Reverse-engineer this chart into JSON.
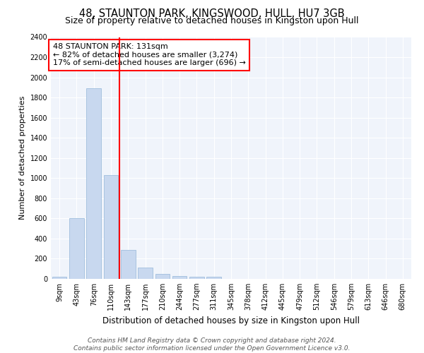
{
  "title": "48, STAUNTON PARK, KINGSWOOD, HULL, HU7 3GB",
  "subtitle": "Size of property relative to detached houses in Kingston upon Hull",
  "xlabel": "Distribution of detached houses by size in Kingston upon Hull",
  "ylabel": "Number of detached properties",
  "categories": [
    "9sqm",
    "43sqm",
    "76sqm",
    "110sqm",
    "143sqm",
    "177sqm",
    "210sqm",
    "244sqm",
    "277sqm",
    "311sqm",
    "345sqm",
    "378sqm",
    "412sqm",
    "445sqm",
    "479sqm",
    "512sqm",
    "546sqm",
    "579sqm",
    "613sqm",
    "646sqm",
    "680sqm"
  ],
  "values": [
    20,
    600,
    1890,
    1030,
    285,
    115,
    50,
    30,
    20,
    20,
    0,
    0,
    0,
    0,
    0,
    0,
    0,
    0,
    0,
    0,
    0
  ],
  "bar_color": "#c8d8ef",
  "bar_edge_color": "#a0bedd",
  "red_line_x": 3.5,
  "annotation_title": "48 STAUNTON PARK: 131sqm",
  "annotation_line1": "← 82% of detached houses are smaller (3,274)",
  "annotation_line2": "17% of semi-detached houses are larger (696) →",
  "ylim": [
    0,
    2400
  ],
  "yticks": [
    0,
    200,
    400,
    600,
    800,
    1000,
    1200,
    1400,
    1600,
    1800,
    2000,
    2200,
    2400
  ],
  "footnote1": "Contains HM Land Registry data © Crown copyright and database right 2024.",
  "footnote2": "Contains public sector information licensed under the Open Government Licence v3.0.",
  "bg_color": "#ffffff",
  "plot_bg_color": "#f0f4fb",
  "title_fontsize": 10.5,
  "subtitle_fontsize": 9,
  "xlabel_fontsize": 8.5,
  "ylabel_fontsize": 8,
  "tick_fontsize": 7,
  "footnote_fontsize": 6.5
}
